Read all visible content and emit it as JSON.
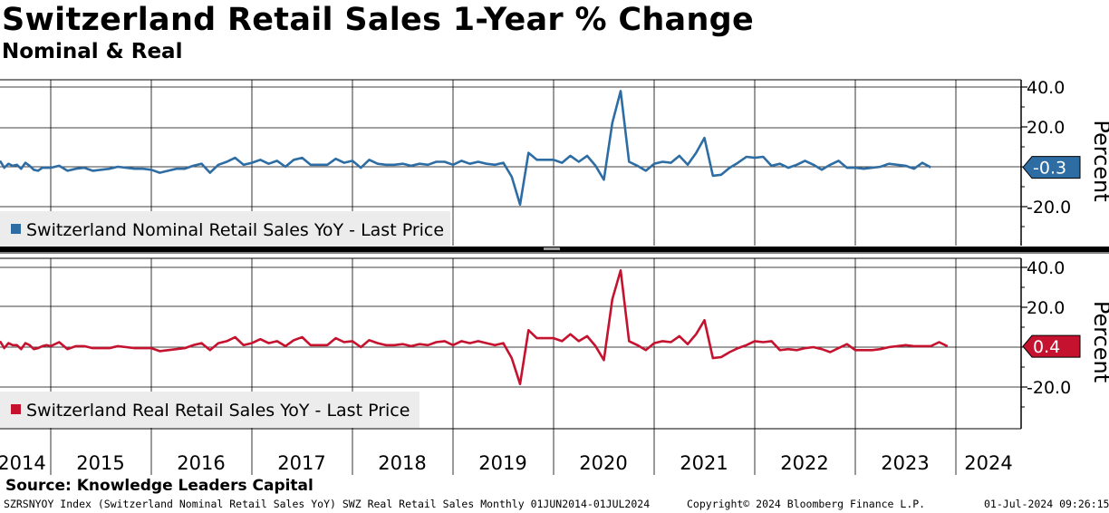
{
  "title": "Switzerland Retail Sales 1-Year % Change",
  "subtitle": "Nominal & Real",
  "colors": {
    "nominal": "#2e6da4",
    "real": "#c4122f",
    "grid": "#000000"
  },
  "chart_data": [
    {
      "type": "line",
      "name": "nominal-panel",
      "ylabel": "Percent",
      "ylim": [
        -40,
        45
      ],
      "yticks": [
        40.0,
        20.0,
        -20.0
      ],
      "ytick_labels": [
        "40.0",
        "20.0",
        "-20.0"
      ],
      "legend": "Switzerland Nominal Retail Sales YoY - Last Price",
      "last_value": -0.3,
      "last_label": "-0.3",
      "x_start": "2014-01",
      "series": [
        {
          "name": "Switzerland Nominal Retail Sales YoY",
          "values": [
            3.0,
            -0.5,
            1.5,
            0.5,
            1.0,
            -1.0,
            2.0,
            0.5,
            -1.5,
            -2.0,
            -0.5,
            -0.5,
            -0.5,
            0.5,
            -2.0,
            -1.0,
            -0.5,
            -2.0,
            -1.5,
            -1.0,
            0.0,
            -0.5,
            -1.0,
            -1.0,
            -1.5,
            -3.0,
            -2.0,
            -1.0,
            -1.0,
            0.5,
            1.5,
            -3.0,
            1.0,
            2.5,
            4.5,
            1.0,
            2.0,
            3.5,
            1.5,
            3.0,
            0.0,
            3.5,
            4.5,
            1.0,
            1.0,
            1.0,
            4.0,
            2.0,
            3.0,
            -0.5,
            3.5,
            1.5,
            1.0,
            1.0,
            1.5,
            0.5,
            1.5,
            1.0,
            2.5,
            2.5,
            1.0,
            3.0,
            1.5,
            2.5,
            1.5,
            1.0,
            2.0,
            -5.0,
            -19.0,
            7.0,
            3.5,
            3.5,
            3.5,
            2.0,
            5.5,
            2.5,
            5.5,
            0.5,
            -6.5,
            22.0,
            38.0,
            2.5,
            0.5,
            -2.0,
            1.5,
            2.5,
            2.0,
            5.5,
            1.0,
            7.0,
            14.5,
            -4.5,
            -4.0,
            -0.5,
            2.0,
            5.0,
            4.5,
            5.0,
            0.5,
            1.5,
            -0.5,
            1.0,
            3.0,
            1.0,
            -1.5,
            1.0,
            3.0,
            -0.5,
            -0.5,
            -1.0,
            -0.5,
            0.0,
            1.5,
            1.0,
            0.5,
            -1.0,
            2.0,
            -0.3
          ]
        }
      ],
      "x_tick_years": [
        "2014",
        "2015",
        "2016",
        "2017",
        "2018",
        "2019",
        "2020",
        "2021",
        "2022",
        "2023",
        "2024"
      ]
    },
    {
      "type": "line",
      "name": "real-panel",
      "ylabel": "Percent",
      "ylim": [
        -40,
        45
      ],
      "yticks": [
        40.0,
        20.0,
        -20.0
      ],
      "ytick_labels": [
        "40.0",
        "20.0",
        "-20.0"
      ],
      "legend": "Switzerland Real Retail Sales YoY - Last Price",
      "last_value": 0.4,
      "last_label": "0.4",
      "x_start": "2014-01",
      "series": [
        {
          "name": "Switzerland Real Retail Sales YoY",
          "values": [
            3.0,
            -0.5,
            2.0,
            1.0,
            1.0,
            -1.0,
            2.0,
            1.0,
            -1.0,
            -0.5,
            0.5,
            1.0,
            0.5,
            2.5,
            -1.0,
            0.5,
            0.5,
            -0.5,
            -0.5,
            -0.5,
            0.5,
            0.0,
            -0.5,
            -0.5,
            -0.5,
            -2.0,
            -1.5,
            -1.0,
            -0.5,
            1.0,
            2.0,
            -1.5,
            2.0,
            3.0,
            5.0,
            1.0,
            2.0,
            4.0,
            2.0,
            3.0,
            0.5,
            3.5,
            5.0,
            1.0,
            1.0,
            1.0,
            4.5,
            2.5,
            3.0,
            0.0,
            3.5,
            2.0,
            1.0,
            1.0,
            1.5,
            0.5,
            1.5,
            1.0,
            2.5,
            3.0,
            1.0,
            3.0,
            2.0,
            3.0,
            2.0,
            1.0,
            2.0,
            -5.5,
            -18.5,
            8.5,
            4.5,
            4.5,
            4.5,
            3.0,
            6.5,
            3.0,
            5.5,
            0.5,
            -6.5,
            24.0,
            38.5,
            3.0,
            1.0,
            -1.5,
            2.0,
            3.0,
            2.5,
            5.5,
            1.5,
            6.5,
            13.5,
            -5.5,
            -5.0,
            -2.5,
            -0.5,
            1.0,
            3.0,
            2.5,
            3.0,
            -1.5,
            -1.0,
            -1.5,
            -0.5,
            0.0,
            -1.0,
            -2.5,
            -0.5,
            1.5,
            -1.5,
            -1.5,
            -1.5,
            -1.0,
            0.0,
            0.5,
            1.0,
            0.5,
            0.5,
            0.5,
            2.5,
            0.4
          ]
        }
      ],
      "x_tick_years": [
        "2014",
        "2015",
        "2016",
        "2017",
        "2018",
        "2019",
        "2020",
        "2021",
        "2022",
        "2023",
        "2024"
      ]
    }
  ],
  "footer": {
    "source": "Source: Knowledge Leaders Capital",
    "index_info": "SZRSNYOY Index (Switzerland Nominal Retail Sales YoY) SWZ Real Retail Sales  Monthly 01JUN2014-01JUL2024",
    "copyright": "Copyright© 2024 Bloomberg Finance L.P.",
    "timestamp": "01-Jul-2024 09:26:15"
  }
}
